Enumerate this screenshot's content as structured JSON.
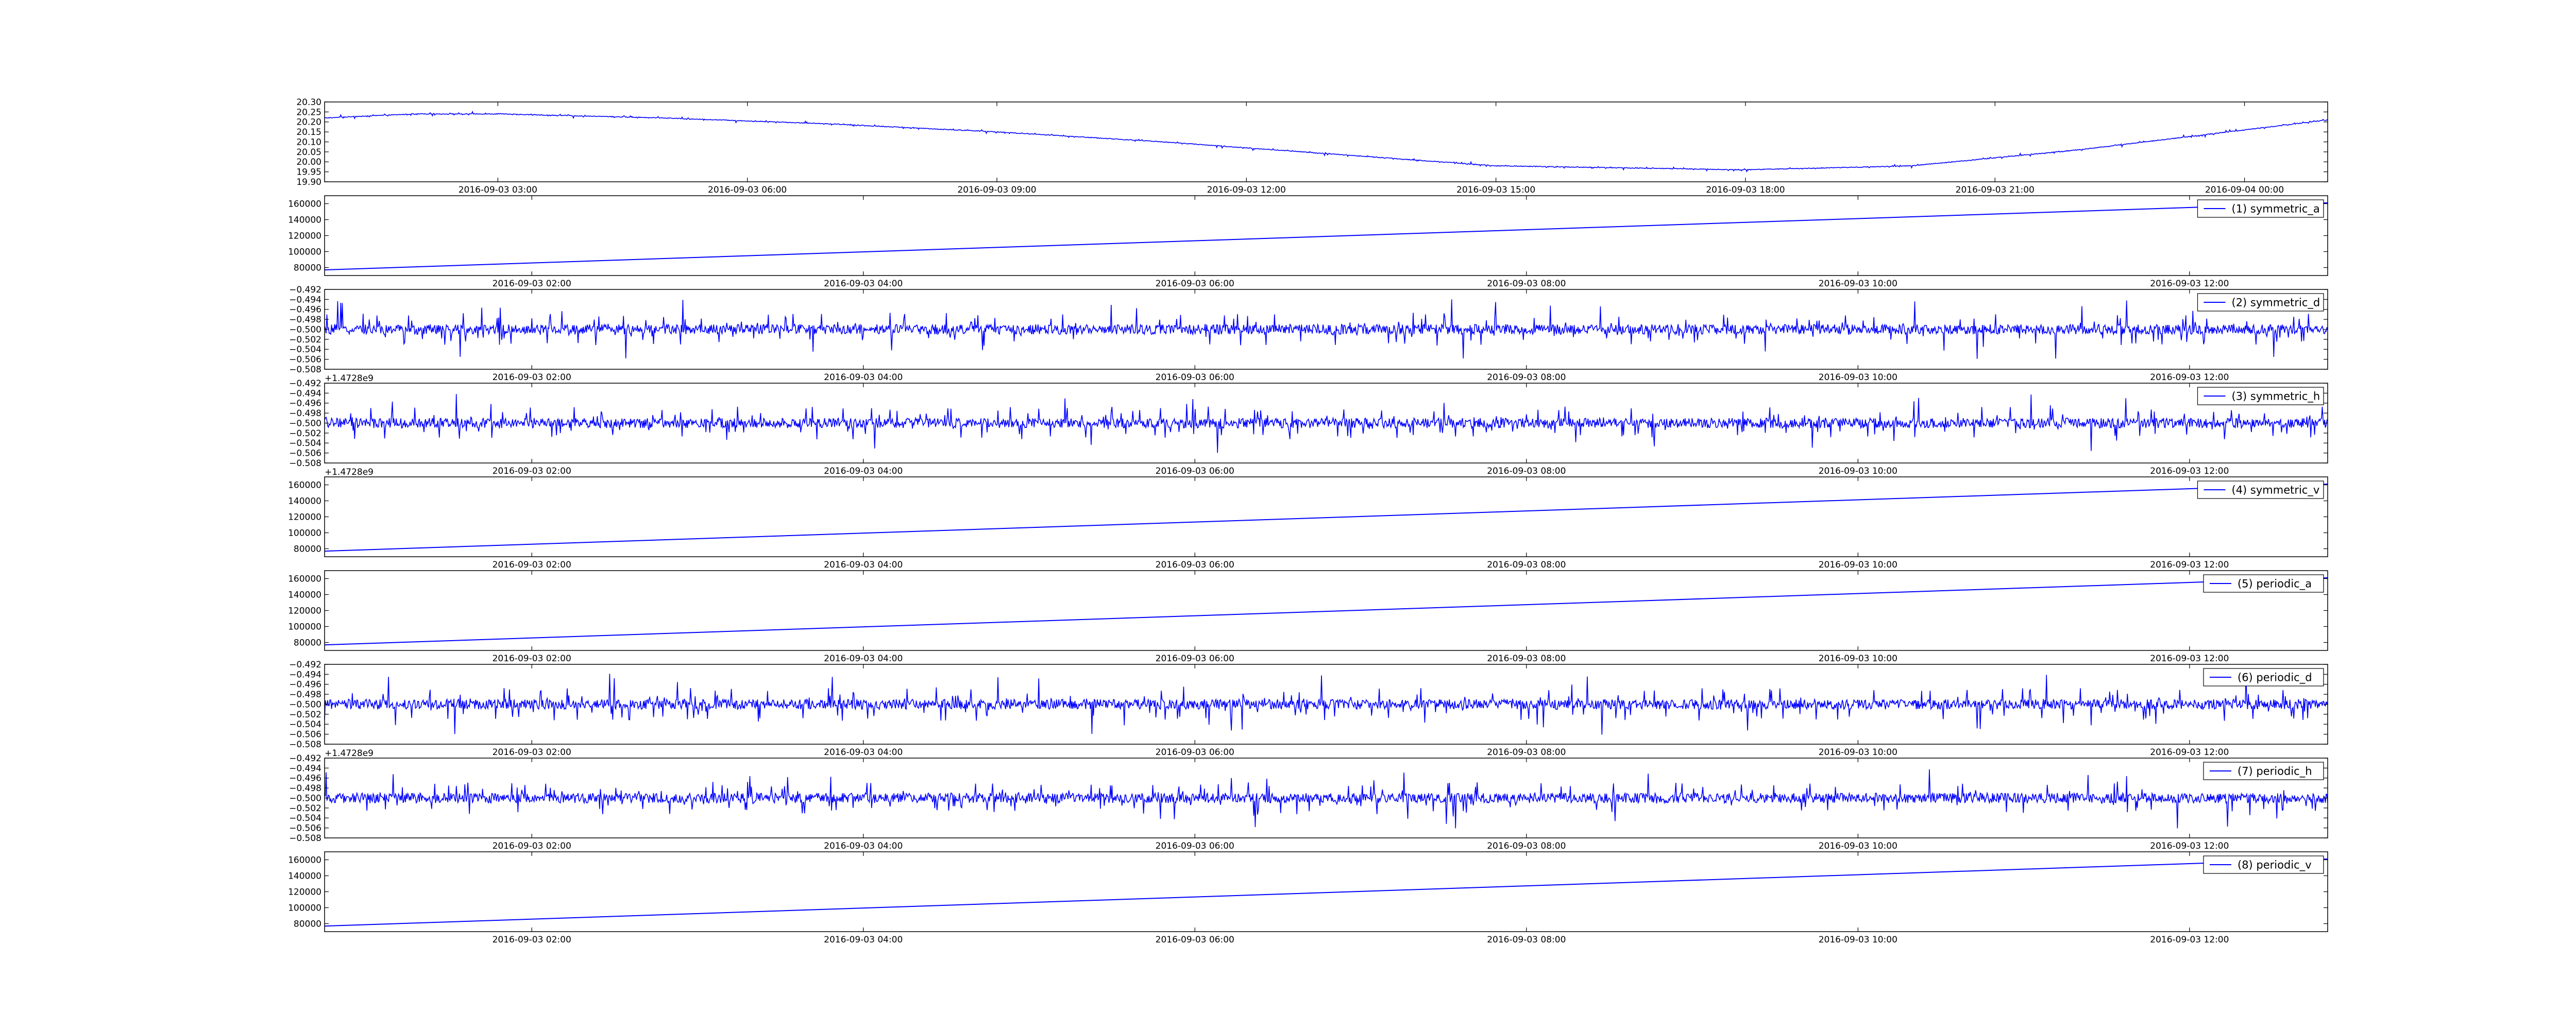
{
  "chart_data": [
    {
      "type": "line",
      "x_axis": "datetime",
      "xlim": [
        "2016-09-03 00:55",
        "2016-09-04 01:00"
      ],
      "xticks": [
        "2016-09-03 03:00",
        "2016-09-03 06:00",
        "2016-09-03 09:00",
        "2016-09-03 12:00",
        "2016-09-03 15:00",
        "2016-09-03 18:00",
        "2016-09-03 21:00",
        "2016-09-04 00:00"
      ],
      "ylim": [
        19.9,
        20.3
      ],
      "yticks": [
        "20.30",
        "20.25",
        "20.20",
        "20.15",
        "20.10",
        "20.05",
        "20.00",
        "19.95",
        "19.90"
      ],
      "offset_text": "",
      "legend": null,
      "color": "#0000ff",
      "noise": 0.004,
      "series": [
        {
          "name": "",
          "x": [
            "2016-09-03 00:55",
            "2016-09-03 02:00",
            "2016-09-03 03:00",
            "2016-09-03 05:00",
            "2016-09-03 07:00",
            "2016-09-03 09:00",
            "2016-09-03 11:00",
            "2016-09-03 13:00",
            "2016-09-03 15:00",
            "2016-09-03 18:00",
            "2016-09-03 20:00",
            "2016-09-03 22:00",
            "2016-09-04 00:00",
            "2016-09-04 01:00"
          ],
          "y": [
            20.22,
            20.24,
            20.24,
            20.22,
            20.19,
            20.15,
            20.1,
            20.04,
            19.98,
            19.96,
            19.98,
            20.06,
            20.16,
            20.21
          ]
        }
      ]
    },
    {
      "type": "line",
      "x_axis": "datetime",
      "xlim": [
        "2016-09-03 00:45",
        "2016-09-03 12:50"
      ],
      "xticks": [
        "2016-09-03 02:00",
        "2016-09-03 04:00",
        "2016-09-03 06:00",
        "2016-09-03 08:00",
        "2016-09-03 10:00",
        "2016-09-03 12:00"
      ],
      "ylim": [
        70000,
        170000
      ],
      "yticks": [
        "160000",
        "140000",
        "120000",
        "100000",
        "80000"
      ],
      "offset_text": "",
      "legend": {
        "label": "(1) symmetric_a",
        "placement": "upper right"
      },
      "color": "#0000ff",
      "noise": 0,
      "series": [
        {
          "name": "(1) symmetric_a",
          "x": [
            "2016-09-03 00:45",
            "2016-09-03 12:50"
          ],
          "y": [
            77000,
            161000
          ]
        }
      ]
    },
    {
      "type": "line",
      "x_axis": "datetime",
      "xlim": [
        "2016-09-03 00:45",
        "2016-09-03 12:50"
      ],
      "xticks": [
        "2016-09-03 02:00",
        "2016-09-03 04:00",
        "2016-09-03 06:00",
        "2016-09-03 08:00",
        "2016-09-03 10:00",
        "2016-09-03 12:00"
      ],
      "ylim": [
        -0.508,
        -0.492
      ],
      "yticks": [
        "−0.492",
        "−0.494",
        "−0.496",
        "−0.498",
        "−0.500",
        "−0.502",
        "−0.504",
        "−0.506",
        "−0.508"
      ],
      "offset_text": "",
      "legend": {
        "label": "(2) symmetric_d",
        "placement": "upper right"
      },
      "color": "#0000ff",
      "noise": 0.0022,
      "series": [
        {
          "name": "(2) symmetric_d",
          "x": [
            "2016-09-03 00:45",
            "2016-09-03 12:50"
          ],
          "y": [
            -0.5,
            -0.5
          ]
        }
      ]
    },
    {
      "type": "line",
      "x_axis": "datetime",
      "xlim": [
        "2016-09-03 00:45",
        "2016-09-03 12:50"
      ],
      "xticks": [
        "2016-09-03 02:00",
        "2016-09-03 04:00",
        "2016-09-03 06:00",
        "2016-09-03 08:00",
        "2016-09-03 10:00",
        "2016-09-03 12:00"
      ],
      "ylim": [
        -0.508,
        -0.492
      ],
      "yticks": [
        "−0.492",
        "−0.494",
        "−0.496",
        "−0.498",
        "−0.500",
        "−0.502",
        "−0.504",
        "−0.506",
        "−0.508"
      ],
      "offset_text": "+1.4728e9",
      "legend": {
        "label": "(3) symmetric_h",
        "placement": "upper right"
      },
      "color": "#0000ff",
      "noise": 0.0022,
      "series": [
        {
          "name": "(3) symmetric_h",
          "x": [
            "2016-09-03 00:45",
            "2016-09-03 12:50"
          ],
          "y": [
            -0.5,
            -0.5
          ]
        }
      ]
    },
    {
      "type": "line",
      "x_axis": "datetime",
      "xlim": [
        "2016-09-03 00:45",
        "2016-09-03 12:50"
      ],
      "xticks": [
        "2016-09-03 02:00",
        "2016-09-03 04:00",
        "2016-09-03 06:00",
        "2016-09-03 08:00",
        "2016-09-03 10:00",
        "2016-09-03 12:00"
      ],
      "ylim": [
        70000,
        170000
      ],
      "yticks": [
        "160000",
        "140000",
        "120000",
        "100000",
        "80000"
      ],
      "offset_text": "+1.4728e9",
      "legend": {
        "label": "(4) symmetric_v",
        "placement": "upper right"
      },
      "color": "#0000ff",
      "noise": 0,
      "series": [
        {
          "name": "(4) symmetric_v",
          "x": [
            "2016-09-03 00:45",
            "2016-09-03 12:50"
          ],
          "y": [
            77000,
            161000
          ]
        }
      ]
    },
    {
      "type": "line",
      "x_axis": "datetime",
      "xlim": [
        "2016-09-03 00:45",
        "2016-09-03 12:50"
      ],
      "xticks": [
        "2016-09-03 02:00",
        "2016-09-03 04:00",
        "2016-09-03 06:00",
        "2016-09-03 08:00",
        "2016-09-03 10:00",
        "2016-09-03 12:00"
      ],
      "ylim": [
        70000,
        170000
      ],
      "yticks": [
        "160000",
        "140000",
        "120000",
        "100000",
        "80000"
      ],
      "offset_text": "",
      "legend": {
        "label": "(5) periodic_a",
        "placement": "upper right"
      },
      "color": "#0000ff",
      "noise": 0,
      "series": [
        {
          "name": "(5) periodic_a",
          "x": [
            "2016-09-03 00:45",
            "2016-09-03 12:50"
          ],
          "y": [
            77000,
            161000
          ]
        }
      ]
    },
    {
      "type": "line",
      "x_axis": "datetime",
      "xlim": [
        "2016-09-03 00:45",
        "2016-09-03 12:50"
      ],
      "xticks": [
        "2016-09-03 02:00",
        "2016-09-03 04:00",
        "2016-09-03 06:00",
        "2016-09-03 08:00",
        "2016-09-03 10:00",
        "2016-09-03 12:00"
      ],
      "ylim": [
        -0.508,
        -0.492
      ],
      "yticks": [
        "−0.492",
        "−0.494",
        "−0.496",
        "−0.498",
        "−0.500",
        "−0.502",
        "−0.504",
        "−0.506",
        "−0.508"
      ],
      "offset_text": "",
      "legend": {
        "label": "(6) periodic_d",
        "placement": "upper right"
      },
      "color": "#0000ff",
      "noise": 0.0022,
      "series": [
        {
          "name": "(6) periodic_d",
          "x": [
            "2016-09-03 00:45",
            "2016-09-03 12:50"
          ],
          "y": [
            -0.5,
            -0.5
          ]
        }
      ]
    },
    {
      "type": "line",
      "x_axis": "datetime",
      "xlim": [
        "2016-09-03 00:45",
        "2016-09-03 12:50"
      ],
      "xticks": [
        "2016-09-03 02:00",
        "2016-09-03 04:00",
        "2016-09-03 06:00",
        "2016-09-03 08:00",
        "2016-09-03 10:00",
        "2016-09-03 12:00"
      ],
      "ylim": [
        -0.508,
        -0.492
      ],
      "yticks": [
        "−0.492",
        "−0.494",
        "−0.496",
        "−0.498",
        "−0.500",
        "−0.502",
        "−0.504",
        "−0.506",
        "−0.508"
      ],
      "offset_text": "+1.4728e9",
      "legend": {
        "label": "(7) periodic_h",
        "placement": "upper right"
      },
      "color": "#0000ff",
      "noise": 0.0022,
      "series": [
        {
          "name": "(7) periodic_h",
          "x": [
            "2016-09-03 00:45",
            "2016-09-03 12:50"
          ],
          "y": [
            -0.5,
            -0.5
          ]
        }
      ]
    },
    {
      "type": "line",
      "x_axis": "datetime",
      "xlim": [
        "2016-09-03 00:45",
        "2016-09-03 12:50"
      ],
      "xticks": [
        "2016-09-03 02:00",
        "2016-09-03 04:00",
        "2016-09-03 06:00",
        "2016-09-03 08:00",
        "2016-09-03 10:00",
        "2016-09-03 12:00"
      ],
      "ylim": [
        70000,
        170000
      ],
      "yticks": [
        "160000",
        "140000",
        "120000",
        "100000",
        "80000"
      ],
      "offset_text": "",
      "legend": {
        "label": "(8) periodic_v",
        "placement": "upper right"
      },
      "color": "#0000ff",
      "noise": 0,
      "series": [
        {
          "name": "(8) periodic_v",
          "x": [
            "2016-09-03 00:45",
            "2016-09-03 12:50"
          ],
          "y": [
            77000,
            161000
          ]
        }
      ]
    }
  ]
}
